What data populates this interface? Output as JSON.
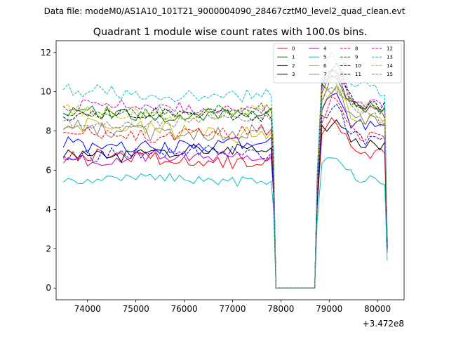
{
  "header": {
    "suptitle": "Data file: modeM0/AS1A10_101T21_9000004090_28467cztM0_level2_quad_clean.evt",
    "title": "Quadrant 1 module wise count rates with 100.0s bins."
  },
  "chart_data": {
    "type": "line",
    "title": "Quadrant 1 module wise count rates with 100.0s bins.",
    "xlabel": "",
    "ylabel": "",
    "x_offset_label": "+3.472e8",
    "x_offset": 347200000,
    "xlim": [
      73350,
      80550
    ],
    "ylim": [
      -0.6,
      12.6
    ],
    "xticks": [
      74000,
      75000,
      76000,
      77000,
      78000,
      79000,
      80000
    ],
    "yticks": [
      0,
      2,
      4,
      6,
      8,
      10,
      12
    ],
    "legend_loc": "upper right",
    "legend_ncol": 4,
    "grid": false,
    "segments": [
      {
        "start": 73500,
        "end": 77800,
        "step": 100
      },
      {
        "start": 78750,
        "end": 80150,
        "step": 100
      }
    ],
    "gap": {
      "drop_end": 77850,
      "zero_points": [
        77900,
        78700
      ],
      "final_x": 80200
    },
    "series": [
      {
        "name": "0",
        "color": "#ff0000",
        "dash": "solid",
        "base1": 6.6,
        "amp1": 0.35,
        "base2": 7.4,
        "peak_add": 1.2,
        "final": 2.0,
        "seed": 1
      },
      {
        "name": "1",
        "color": "#008000",
        "dash": "solid",
        "base1": 8.9,
        "amp1": 0.35,
        "base2": 9.6,
        "peak_add": 1.3,
        "final": 2.5,
        "seed": 2
      },
      {
        "name": "2",
        "color": "#0000ff",
        "dash": "solid",
        "base1": 7.3,
        "amp1": 0.4,
        "base2": 8.6,
        "peak_add": 1.5,
        "final": 1.8,
        "seed": 3
      },
      {
        "name": "3",
        "color": "#000000",
        "dash": "solid",
        "base1": 6.9,
        "amp1": 0.35,
        "base2": 7.7,
        "peak_add": 1.0,
        "final": 2.0,
        "seed": 4
      },
      {
        "name": "4",
        "color": "#bf00bf",
        "dash": "solid",
        "base1": 6.6,
        "amp1": 0.3,
        "base2": 9.5,
        "peak_add": 1.6,
        "final": 2.2,
        "seed": 5
      },
      {
        "name": "5",
        "color": "#00bfbf",
        "dash": "solid",
        "base1": 5.5,
        "amp1": 0.25,
        "base2": 6.0,
        "peak_add": 0.7,
        "final": 1.4,
        "seed": 6
      },
      {
        "name": "6",
        "color": "#bfbf00",
        "dash": "solid",
        "base1": 8.0,
        "amp1": 0.45,
        "base2": 9.0,
        "peak_add": 1.2,
        "final": 2.4,
        "seed": 7
      },
      {
        "name": "7",
        "color": "#808080",
        "dash": "solid",
        "base1": 8.0,
        "amp1": 0.4,
        "base2": 9.0,
        "peak_add": 1.3,
        "final": 2.6,
        "seed": 8
      },
      {
        "name": "8",
        "color": "#ff0000",
        "dash": "dashed",
        "base1": 7.9,
        "amp1": 0.35,
        "base2": 8.2,
        "peak_add": 1.4,
        "final": 2.3,
        "seed": 9
      },
      {
        "name": "9",
        "color": "#008000",
        "dash": "dashed",
        "base1": 9.0,
        "amp1": 0.3,
        "base2": 9.6,
        "peak_add": 1.5,
        "final": 2.6,
        "seed": 10
      },
      {
        "name": "10",
        "color": "#0000ff",
        "dash": "dashed",
        "base1": 6.9,
        "amp1": 0.35,
        "base2": 8.0,
        "peak_add": 1.3,
        "final": 2.0,
        "seed": 11
      },
      {
        "name": "11",
        "color": "#000000",
        "dash": "dashed",
        "base1": 8.8,
        "amp1": 0.3,
        "base2": 9.8,
        "peak_add": 1.6,
        "final": 2.4,
        "seed": 12
      },
      {
        "name": "12",
        "color": "#bf00bf",
        "dash": "dashed",
        "base1": 9.2,
        "amp1": 0.3,
        "base2": 9.9,
        "peak_add": 1.4,
        "final": 2.5,
        "seed": 13
      },
      {
        "name": "13",
        "color": "#00bfbf",
        "dash": "dashed",
        "base1": 9.9,
        "amp1": 0.35,
        "base2": 10.6,
        "peak_add": 1.4,
        "final": 2.8,
        "seed": 14
      },
      {
        "name": "14",
        "color": "#bfbf00",
        "dash": "dashed",
        "base1": 9.0,
        "amp1": 0.35,
        "base2": 9.5,
        "peak_add": 1.4,
        "final": 2.6,
        "seed": 15
      },
      {
        "name": "15",
        "color": "#808080",
        "dash": "dashed",
        "base1": 8.5,
        "amp1": 0.3,
        "base2": 9.2,
        "peak_add": 1.3,
        "final": 2.5,
        "seed": 16
      }
    ]
  }
}
